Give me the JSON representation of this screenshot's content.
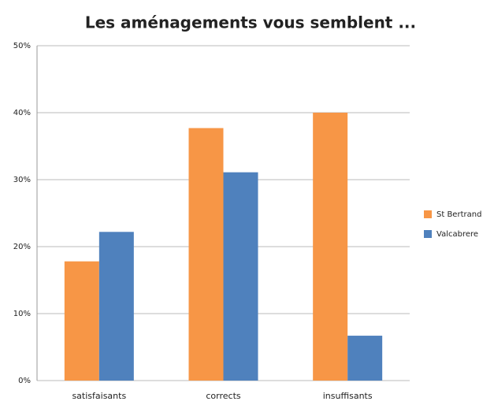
{
  "chart_data": {
    "type": "bar",
    "title": "Les aménagements vous semblent ...",
    "categories": [
      "satisfaisants",
      "corrects",
      "insuffisants"
    ],
    "series": [
      {
        "name": "St Bertrand",
        "color": "#f79646",
        "values": [
          17.8,
          37.7,
          40
        ]
      },
      {
        "name": "Valcabrere",
        "color": "#4f81bd",
        "values": [
          22.2,
          31.1,
          6.7
        ]
      }
    ],
    "ylim": [
      0,
      50
    ],
    "yticks": [
      {
        "value": 0,
        "label": "0%"
      },
      {
        "value": 10,
        "label": "10%"
      },
      {
        "value": 20,
        "label": "20%"
      },
      {
        "value": 30,
        "label": "30%"
      },
      {
        "value": 40,
        "label": "40%"
      },
      {
        "value": 50,
        "label": "50%"
      }
    ],
    "grid": true,
    "legend": "right"
  }
}
